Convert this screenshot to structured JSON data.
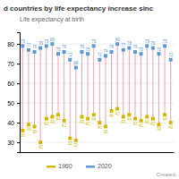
{
  "chart_data": {
    "type": "dumbbell",
    "title": "d countries by life expectancy increase sinc",
    "subtitle": "Life expectancy at birth",
    "categories": [
      null,
      null,
      null,
      null,
      null,
      null,
      null,
      null,
      null,
      null,
      null,
      null,
      null,
      null,
      null,
      null,
      null,
      null,
      null,
      null,
      null,
      null,
      null,
      null,
      null,
      null
    ],
    "series": [
      {
        "name": "1960",
        "color": "#d4b800",
        "values": [
          36,
          39,
          38,
          30,
          42,
          43,
          44,
          41,
          32,
          31,
          43,
          42,
          44,
          40,
          38,
          46,
          47,
          43,
          44,
          42,
          41,
          43,
          42,
          39,
          44,
          40
        ]
      },
      {
        "name": "2020",
        "color": "#5b9bd5",
        "values": [
          79,
          77,
          76,
          78,
          79,
          80,
          75,
          76,
          72,
          68,
          76,
          75,
          79,
          72,
          74,
          76,
          80,
          77,
          78,
          76,
          75,
          79,
          78,
          75,
          79,
          72
        ]
      }
    ],
    "color": "#f0a0b0",
    "marker": "square",
    "ylim": [
      25,
      86
    ],
    "yticks": [
      30,
      40,
      50,
      60,
      70,
      80
    ],
    "grid": true,
    "legend": "bottom",
    "data_labels": true,
    "annotations": [
      "Created"
    ]
  }
}
